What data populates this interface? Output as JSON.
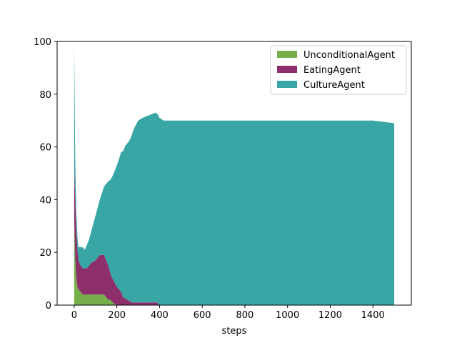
{
  "chart_data": {
    "type": "area",
    "stacked": true,
    "xlabel": "steps",
    "ylabel": "",
    "xlim": [
      -80,
      1580
    ],
    "ylim": [
      0,
      100
    ],
    "x_ticks": [
      0,
      200,
      400,
      600,
      800,
      1000,
      1200,
      1400
    ],
    "y_ticks": [
      0,
      20,
      40,
      60,
      80,
      100
    ],
    "legend": "upper-right",
    "grid": false,
    "series": [
      {
        "name": "UnconditionalAgent",
        "color": "#77b04a",
        "points": [
          [
            0,
            32
          ],
          [
            5,
            18
          ],
          [
            10,
            10
          ],
          [
            15,
            7
          ],
          [
            20,
            6
          ],
          [
            30,
            5
          ],
          [
            40,
            4
          ],
          [
            60,
            4
          ],
          [
            100,
            4
          ],
          [
            140,
            4
          ],
          [
            150,
            3
          ],
          [
            160,
            2
          ],
          [
            170,
            2
          ],
          [
            180,
            1
          ],
          [
            200,
            0
          ],
          [
            1500,
            0
          ]
        ]
      },
      {
        "name": "EatingAgent",
        "color": "#8d2f6b",
        "points": [
          [
            0,
            20
          ],
          [
            5,
            22
          ],
          [
            10,
            18
          ],
          [
            15,
            14
          ],
          [
            20,
            11
          ],
          [
            30,
            10
          ],
          [
            40,
            10
          ],
          [
            50,
            10
          ],
          [
            60,
            10
          ],
          [
            70,
            11
          ],
          [
            80,
            12
          ],
          [
            100,
            13
          ],
          [
            110,
            14
          ],
          [
            120,
            15
          ],
          [
            130,
            15
          ],
          [
            140,
            15
          ],
          [
            150,
            14
          ],
          [
            160,
            13
          ],
          [
            170,
            10
          ],
          [
            180,
            9
          ],
          [
            190,
            8
          ],
          [
            200,
            7
          ],
          [
            210,
            6
          ],
          [
            220,
            5
          ],
          [
            230,
            3
          ],
          [
            250,
            2
          ],
          [
            270,
            1
          ],
          [
            300,
            1
          ],
          [
            350,
            1
          ],
          [
            390,
            1
          ],
          [
            400,
            0
          ],
          [
            1500,
            0
          ]
        ]
      },
      {
        "name": "CultureAgent",
        "color": "#39a6a6",
        "points": [
          [
            0,
            47
          ],
          [
            3,
            59
          ],
          [
            5,
            14
          ],
          [
            10,
            7
          ],
          [
            15,
            5
          ],
          [
            20,
            5
          ],
          [
            30,
            7
          ],
          [
            40,
            8
          ],
          [
            50,
            7
          ],
          [
            60,
            9
          ],
          [
            70,
            10
          ],
          [
            80,
            12
          ],
          [
            100,
            17
          ],
          [
            120,
            21
          ],
          [
            140,
            26
          ],
          [
            160,
            32
          ],
          [
            180,
            39
          ],
          [
            200,
            46
          ],
          [
            220,
            53
          ],
          [
            240,
            58
          ],
          [
            260,
            61
          ],
          [
            280,
            66
          ],
          [
            300,
            69
          ],
          [
            320,
            70
          ],
          [
            350,
            71
          ],
          [
            380,
            72
          ],
          [
            400,
            71
          ],
          [
            420,
            70
          ],
          [
            500,
            70
          ],
          [
            600,
            70
          ],
          [
            700,
            70
          ],
          [
            800,
            70
          ],
          [
            900,
            70
          ],
          [
            1000,
            70
          ],
          [
            1100,
            70
          ],
          [
            1200,
            70
          ],
          [
            1300,
            70
          ],
          [
            1400,
            70
          ],
          [
            1500,
            69
          ]
        ]
      }
    ]
  }
}
